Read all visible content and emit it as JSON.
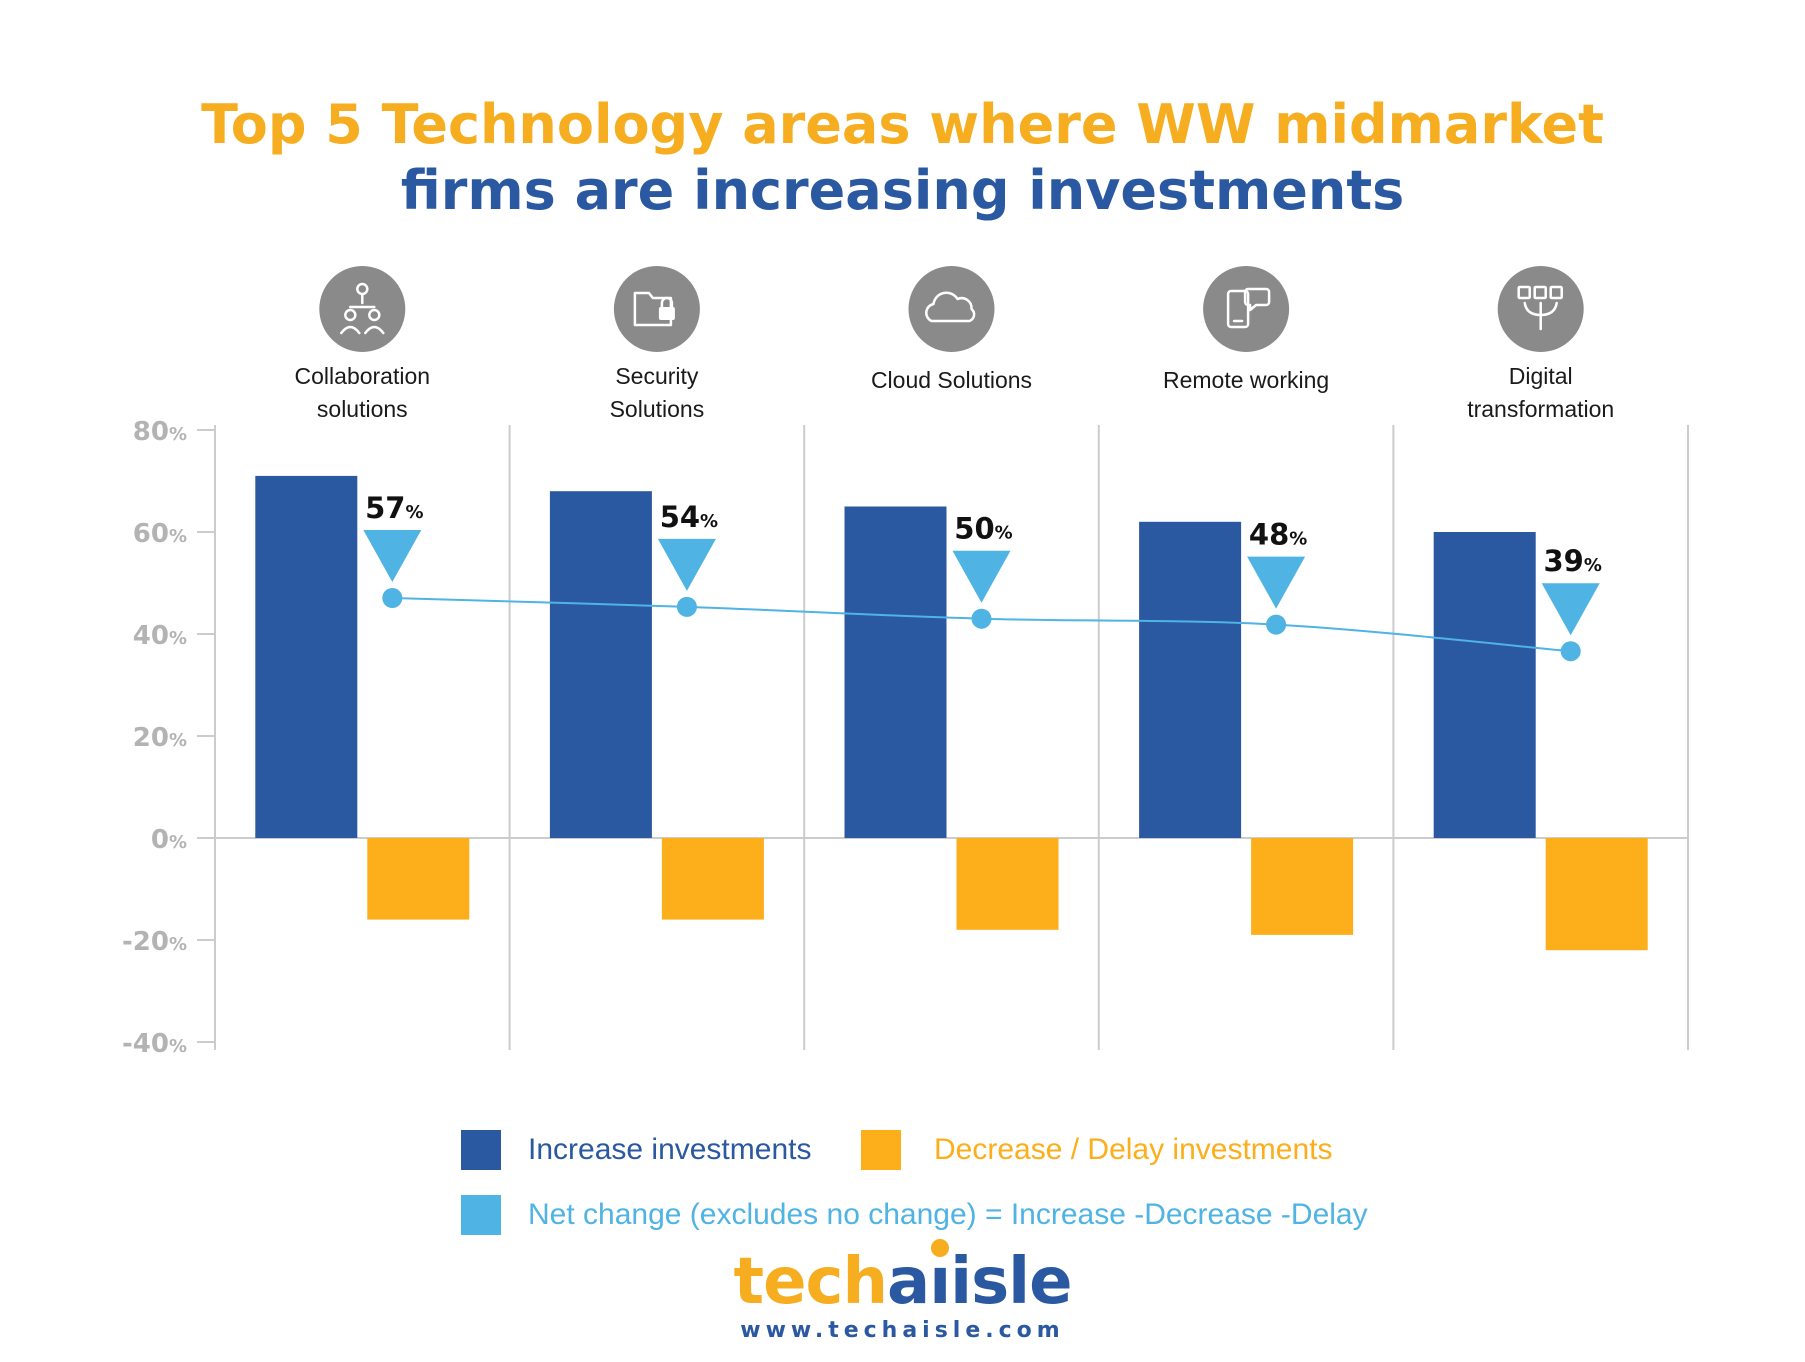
{
  "title": {
    "line1": "Top 5 Technology areas where WW midmarket",
    "line2": "firms are increasing investments"
  },
  "colors": {
    "increase": "#2a58a1",
    "decrease": "#fcae1b",
    "net": "#4fb3e4",
    "grid": "#cccccc",
    "axis_text": "#b3b3b3",
    "icon_circle": "#8a8a8a"
  },
  "chart_data": {
    "type": "bar",
    "categories": [
      {
        "label_lines": [
          "Collaboration",
          "solutions"
        ],
        "icon": "collaboration-icon"
      },
      {
        "label_lines": [
          "Security",
          "Solutions"
        ],
        "icon": "folder-lock-icon"
      },
      {
        "label_lines": [
          "Cloud Solutions"
        ],
        "icon": "cloud-icon"
      },
      {
        "label_lines": [
          "Remote working"
        ],
        "icon": "mobile-chat-icon"
      },
      {
        "label_lines": [
          "Digital",
          "transformation"
        ],
        "icon": "digital-transformation-icon"
      }
    ],
    "series": [
      {
        "name": "Increase investments",
        "type": "bar",
        "values": [
          71,
          68,
          65,
          62,
          60
        ]
      },
      {
        "name": "Decrease / Delay investments",
        "type": "bar",
        "values": [
          -16,
          -16,
          -18,
          -19,
          -22
        ]
      },
      {
        "name": "Net change (excludes no change) = Increase -Decrease -Delay",
        "type": "line",
        "values": [
          57,
          54,
          50,
          48,
          39
        ]
      }
    ],
    "yticks": [
      {
        "num": "80",
        "unit": "%",
        "value": 80
      },
      {
        "num": "60",
        "unit": "%",
        "value": 60
      },
      {
        "num": "40",
        "unit": "%",
        "value": 40
      },
      {
        "num": "20",
        "unit": "%",
        "value": 20
      },
      {
        "num": "0",
        "unit": "%",
        "value": 0
      },
      {
        "num": "-20",
        "unit": "%",
        "value": -20
      },
      {
        "num": "-40",
        "unit": "%",
        "value": -40
      }
    ],
    "ylim": [
      -40,
      80
    ],
    "grid": "vertical separators only",
    "legend_position": "bottom"
  },
  "legend": {
    "increase_label": "Increase investments",
    "decrease_label": "Decrease / Delay investments",
    "net_label": "Net change (excludes no change) = Increase -Decrease -Delay"
  },
  "logo": {
    "part1": "tech",
    "part2": "a",
    "part3": "isle"
  },
  "url": "www.techaisle.com"
}
